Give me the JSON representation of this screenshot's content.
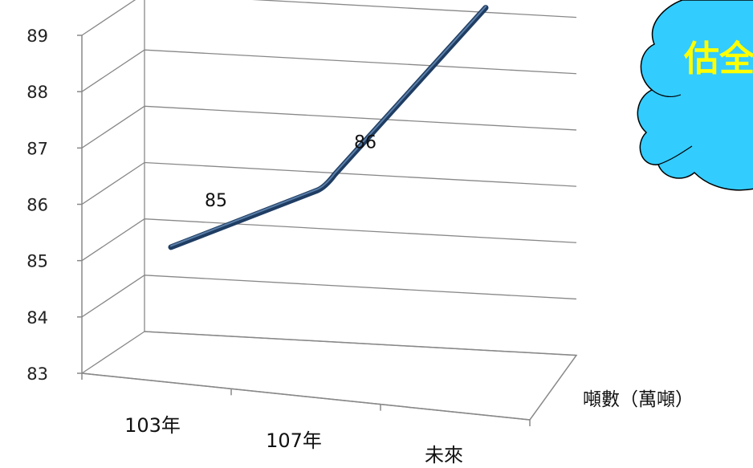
{
  "chart_data": {
    "type": "line",
    "categories": [
      "103年",
      "107年",
      "未來"
    ],
    "series": [
      {
        "name": "噸數（萬噸）",
        "values": [
          85,
          86,
          89
        ]
      }
    ],
    "ylim": [
      83,
      89
    ],
    "yticks": [
      83,
      84,
      85,
      86,
      87,
      88,
      89
    ],
    "grid": true,
    "data_labels": true,
    "legend": "right",
    "line_color": "#1f3d63"
  },
  "callout": {
    "text": "估全",
    "fill_color": "#33ccff",
    "text_color": "#ffff00"
  }
}
